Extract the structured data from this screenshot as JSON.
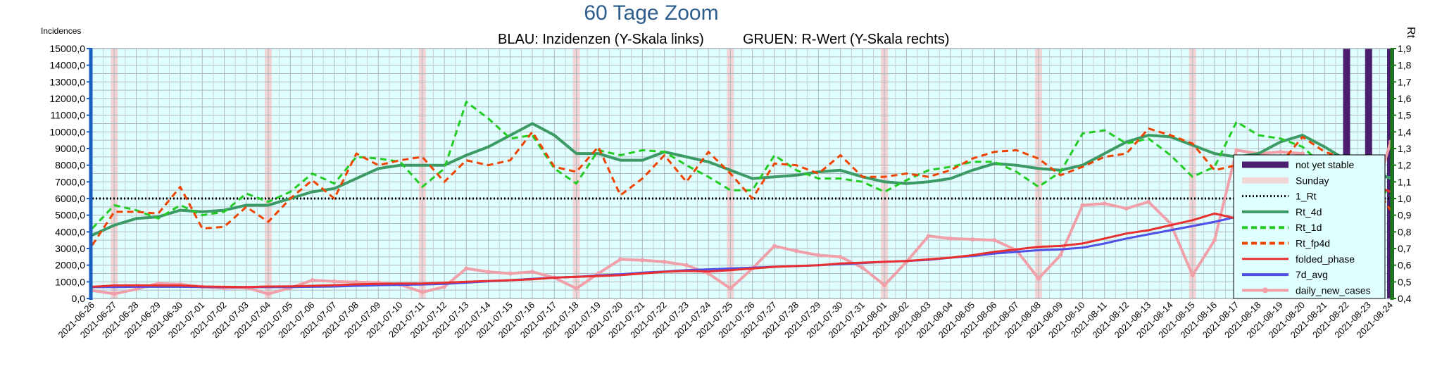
{
  "chart_data": {
    "type": "line",
    "title": "60 Tage Zoom",
    "subtitle_left": "BLAU: Inzidenzen (Y-Skala links)",
    "subtitle_right": "GRUEN: R-Wert (Y-Skala rechts)",
    "ylabel_left": "Incidences",
    "ylabel_right": "Rt",
    "ylim_left": [
      0,
      15000
    ],
    "ylim_right": [
      0.4,
      1.9
    ],
    "grid": true,
    "legend_position": "right",
    "yticks_left": [
      "0,0",
      "1000,0",
      "2000,0",
      "3000,0",
      "4000,0",
      "5000,0",
      "6000,0",
      "7000,0",
      "8000,0",
      "9000,0",
      "10000,0",
      "11000,0",
      "12000,0",
      "13000,0",
      "14000,0",
      "15000,0"
    ],
    "yticks_right": [
      "0,4",
      "0,5",
      "0,6",
      "0,7",
      "0,8",
      "0,9",
      "1,0",
      "1,1",
      "1,2",
      "1,3",
      "1,4",
      "1,5",
      "1,6",
      "1,7",
      "1,8",
      "1,9"
    ],
    "categories": [
      "2021-06-26",
      "2021-06-27",
      "2021-06-28",
      "2021-06-29",
      "2021-06-30",
      "2021-07-01",
      "2021-07-02",
      "2021-07-03",
      "2021-07-04",
      "2021-07-05",
      "2021-07-06",
      "2021-07-07",
      "2021-07-08",
      "2021-07-09",
      "2021-07-10",
      "2021-07-11",
      "2021-07-12",
      "2021-07-13",
      "2021-07-14",
      "2021-07-15",
      "2021-07-16",
      "2021-07-17",
      "2021-07-18",
      "2021-07-19",
      "2021-07-20",
      "2021-07-21",
      "2021-07-22",
      "2021-07-23",
      "2021-07-24",
      "2021-07-25",
      "2021-07-26",
      "2021-07-27",
      "2021-07-28",
      "2021-07-29",
      "2021-07-30",
      "2021-07-31",
      "2021-08-01",
      "2021-08-02",
      "2021-08-03",
      "2021-08-04",
      "2021-08-05",
      "2021-08-06",
      "2021-08-07",
      "2021-08-08",
      "2021-08-09",
      "2021-08-10",
      "2021-08-11",
      "2021-08-12",
      "2021-08-13",
      "2021-08-14",
      "2021-08-15",
      "2021-08-16",
      "2021-08-17",
      "2021-08-18",
      "2021-08-19",
      "2021-08-20",
      "2021-08-21",
      "2021-08-22",
      "2021-08-23",
      "2021-08-24"
    ],
    "sundays": [
      "2021-06-27",
      "2021-07-04",
      "2021-07-11",
      "2021-07-18",
      "2021-07-25",
      "2021-08-01",
      "2021-08-08",
      "2021-08-15"
    ],
    "not_yet_stable": [
      "2021-08-22",
      "2021-08-23",
      "2021-08-24"
    ],
    "series": [
      {
        "name": "1_Rt",
        "axis": "right",
        "color": "#000000",
        "style": "dotted",
        "values": [
          1.0,
          1.0,
          1.0,
          1.0,
          1.0,
          1.0,
          1.0,
          1.0,
          1.0,
          1.0,
          1.0,
          1.0,
          1.0,
          1.0,
          1.0,
          1.0,
          1.0,
          1.0,
          1.0,
          1.0,
          1.0,
          1.0,
          1.0,
          1.0,
          1.0,
          1.0,
          1.0,
          1.0,
          1.0,
          1.0,
          1.0,
          1.0,
          1.0,
          1.0,
          1.0,
          1.0,
          1.0,
          1.0,
          1.0,
          1.0,
          1.0,
          1.0,
          1.0,
          1.0,
          1.0,
          1.0,
          1.0,
          1.0,
          1.0,
          1.0,
          1.0,
          1.0,
          1.0,
          1.0,
          1.0,
          1.0,
          1.0,
          1.0,
          1.0,
          1.0
        ]
      },
      {
        "name": "Rt_4d",
        "axis": "right",
        "color": "#3c9a64",
        "style": "solid",
        "width": 4,
        "values": [
          0.78,
          0.84,
          0.88,
          0.89,
          0.93,
          0.92,
          0.93,
          0.96,
          0.96,
          1.0,
          1.04,
          1.06,
          1.12,
          1.18,
          1.2,
          1.2,
          1.2,
          1.26,
          1.31,
          1.38,
          1.45,
          1.38,
          1.27,
          1.27,
          1.23,
          1.23,
          1.28,
          1.25,
          1.22,
          1.17,
          1.12,
          1.13,
          1.14,
          1.16,
          1.17,
          1.13,
          1.1,
          1.09,
          1.1,
          1.12,
          1.17,
          1.21,
          1.2,
          1.18,
          1.17,
          1.2,
          1.27,
          1.34,
          1.38,
          1.37,
          1.32,
          1.27,
          1.25,
          1.27,
          1.34,
          1.38,
          1.31,
          1.23,
          1.18,
          1.12
        ]
      },
      {
        "name": "Rt_1d",
        "axis": "right",
        "color": "#22cc22",
        "style": "dashed",
        "width": 3,
        "values": [
          0.82,
          0.96,
          0.93,
          0.88,
          0.96,
          0.9,
          0.92,
          1.03,
          0.98,
          1.04,
          1.15,
          1.09,
          1.25,
          1.24,
          1.22,
          1.07,
          1.18,
          1.58,
          1.48,
          1.36,
          1.38,
          1.18,
          1.09,
          1.29,
          1.26,
          1.29,
          1.28,
          1.2,
          1.13,
          1.05,
          1.05,
          1.26,
          1.17,
          1.12,
          1.12,
          1.1,
          1.04,
          1.11,
          1.17,
          1.19,
          1.22,
          1.22,
          1.16,
          1.07,
          1.16,
          1.39,
          1.41,
          1.33,
          1.36,
          1.26,
          1.13,
          1.19,
          1.46,
          1.38,
          1.36,
          1.31,
          1.19,
          1.13,
          1.1,
          1.02
        ]
      },
      {
        "name": "Rt_fp4d",
        "axis": "right",
        "color": "#ee4400",
        "style": "dashed",
        "width": 3,
        "values": [
          0.72,
          0.92,
          0.92,
          0.91,
          1.07,
          0.82,
          0.83,
          0.95,
          0.86,
          1.0,
          1.11,
          1.0,
          1.27,
          1.2,
          1.23,
          1.25,
          1.1,
          1.23,
          1.2,
          1.23,
          1.4,
          1.19,
          1.16,
          1.31,
          1.02,
          1.12,
          1.26,
          1.1,
          1.28,
          1.15,
          1.0,
          1.21,
          1.2,
          1.15,
          1.26,
          1.13,
          1.13,
          1.15,
          1.13,
          1.17,
          1.24,
          1.28,
          1.29,
          1.24,
          1.14,
          1.19,
          1.25,
          1.27,
          1.42,
          1.38,
          1.33,
          1.17,
          1.2,
          1.2,
          1.21,
          1.37,
          1.28,
          1.24,
          1.13,
          0.93
        ]
      },
      {
        "name": "folded_phase",
        "axis": "left",
        "color": "#e83030",
        "style": "solid",
        "width": 3,
        "values": [
          700,
          780,
          790,
          780,
          780,
          720,
          700,
          690,
          720,
          730,
          760,
          800,
          850,
          880,
          900,
          900,
          950,
          1000,
          1050,
          1100,
          1150,
          1250,
          1300,
          1350,
          1400,
          1500,
          1600,
          1650,
          1620,
          1700,
          1800,
          1900,
          1950,
          2000,
          2100,
          2150,
          2200,
          2250,
          2350,
          2450,
          2600,
          2800,
          2950,
          3100,
          3150,
          3300,
          3600,
          3900,
          4100,
          4400,
          4700,
          5100,
          4800,
          5300,
          5800,
          6300,
          6500,
          6700,
          6900,
          6400
        ]
      },
      {
        "name": "7d_avg",
        "axis": "left",
        "color": "#5050e6",
        "style": "solid",
        "width": 3,
        "values": [
          680,
          690,
          700,
          700,
          700,
          690,
          680,
          680,
          680,
          690,
          700,
          720,
          760,
          800,
          820,
          840,
          880,
          950,
          1030,
          1100,
          1180,
          1250,
          1300,
          1380,
          1450,
          1550,
          1620,
          1700,
          1750,
          1800,
          1850,
          1900,
          1950,
          2000,
          2060,
          2120,
          2200,
          2250,
          2320,
          2450,
          2550,
          2700,
          2800,
          2900,
          2950,
          3050,
          3300,
          3600,
          3850,
          4100,
          4350,
          4600,
          4900,
          5300,
          5800,
          6300,
          6700,
          7000,
          7200,
          7300
        ]
      },
      {
        "name": "daily_new_cases",
        "axis": "left",
        "color": "#f0a0a8",
        "style": "solid",
        "width": 4,
        "marker": "circle",
        "values": [
          480,
          280,
          560,
          900,
          850,
          700,
          620,
          650,
          280,
          640,
          1100,
          1020,
          980,
          950,
          830,
          380,
          700,
          1800,
          1600,
          1500,
          1600,
          1250,
          600,
          1500,
          2350,
          2300,
          2200,
          2000,
          1500,
          600,
          1800,
          3150,
          2850,
          2600,
          2500,
          1850,
          800,
          2200,
          3750,
          3600,
          3550,
          3500,
          2900,
          1200,
          2600,
          5600,
          5700,
          5400,
          5800,
          4500,
          1400,
          3500,
          8900,
          8700,
          8800,
          8700,
          6100,
          1400,
          5000,
          9400
        ]
      },
      {
        "name": "not yet stable",
        "color": "#4b1e6e",
        "legend_only": false
      },
      {
        "name": "Sunday",
        "color": "#f0d8d8",
        "legend_only": false
      }
    ],
    "legend_order": [
      "not yet stable",
      "Sunday",
      "1_Rt",
      "Rt_4d",
      "Rt_1d",
      "Rt_fp4d",
      "folded_phase",
      "7d_avg",
      "daily_new_cases"
    ]
  }
}
